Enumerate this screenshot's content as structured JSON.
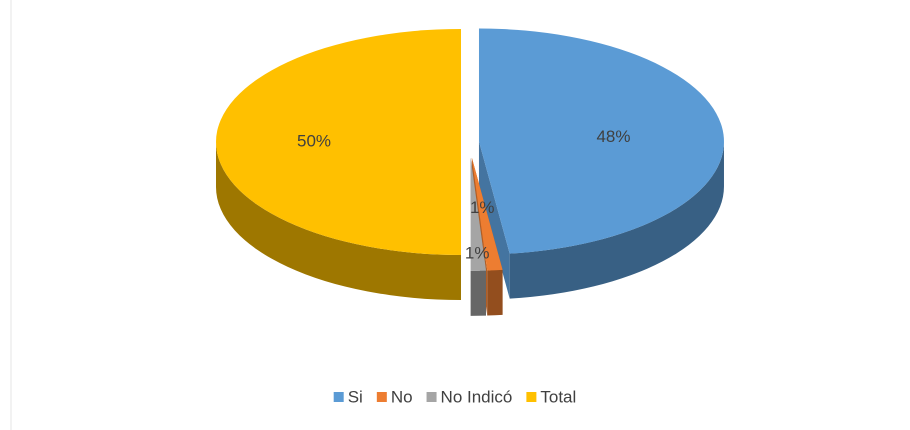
{
  "chart_data": {
    "type": "pie",
    "categories": [
      "Si",
      "No",
      "No Indicó",
      "Total"
    ],
    "values": [
      48,
      1,
      1,
      50
    ],
    "value_labels": [
      "48%",
      "1%",
      "1%",
      "50%"
    ],
    "colors": [
      "#5b9bd5",
      "#ed7d31",
      "#a5a5a5",
      "#ffc000"
    ],
    "legend": "bottom"
  }
}
